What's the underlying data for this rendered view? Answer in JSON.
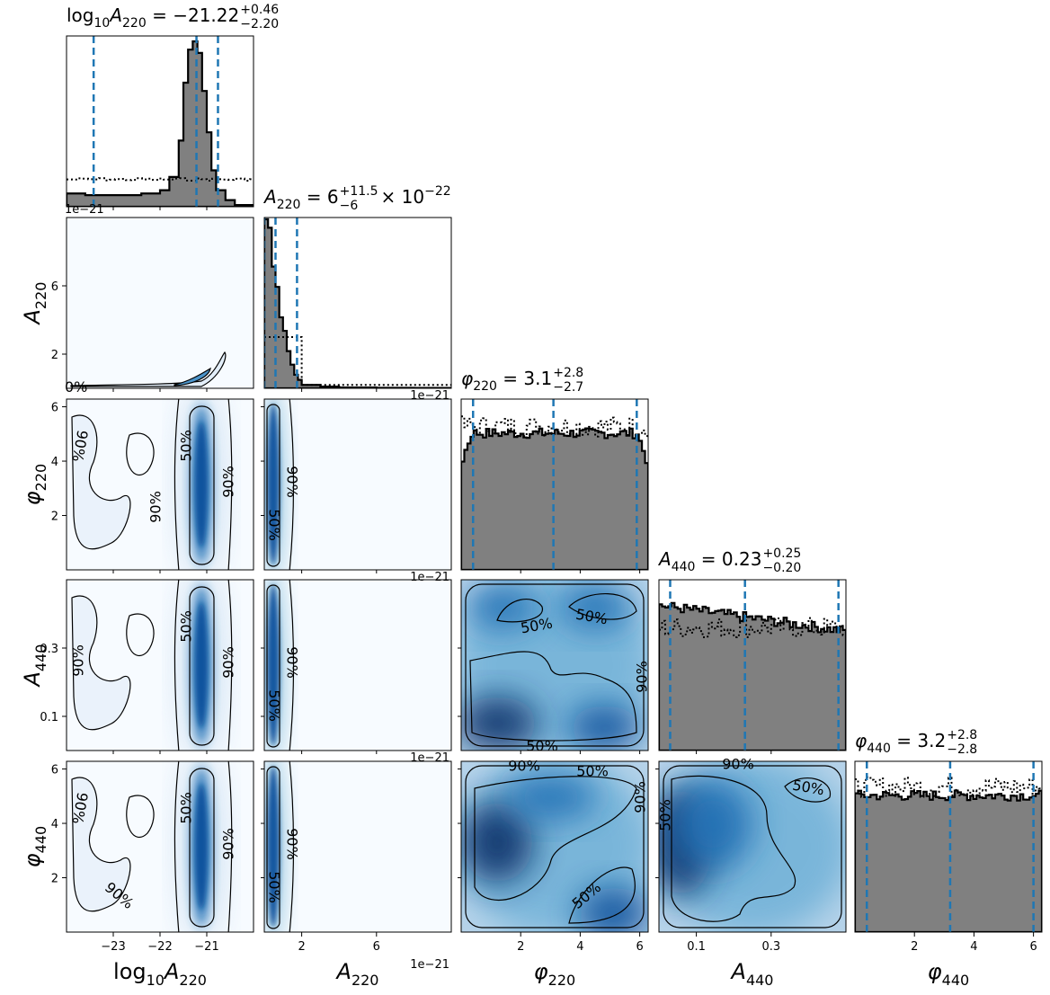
{
  "chart_data": {
    "type": "corner",
    "parameters": [
      {
        "symbol": "log",
        "sub": "10",
        "name": "A",
        "name_sub": "220",
        "axis_label": "log10A220",
        "title": {
          "lhs_base": "log",
          "lhs_base_sub": "10",
          "lhs_var": "A",
          "lhs_var_sub": "220",
          "value": "−21.22",
          "plus": "+0.46",
          "minus": "−2.20",
          "suffix": ""
        },
        "range": [
          -24.0,
          -20.0
        ],
        "ticks": [
          -23,
          -22,
          -21
        ],
        "tick_labels": [
          "−23",
          "−22",
          "−21"
        ],
        "quantiles": [
          -23.42,
          -21.22,
          -20.76
        ],
        "offset_text": ""
      },
      {
        "name": "A",
        "name_sub": "220",
        "axis_label": "A220",
        "title": {
          "lhs_var": "A",
          "lhs_var_sub": "220",
          "value": "6",
          "plus": "+11.5",
          "minus": "−6",
          "suffix": " × 10",
          "suffix_sup": "−22"
        },
        "range": [
          0.0,
          1e-20
        ],
        "ticks": [
          2e-21,
          6e-21
        ],
        "tick_labels": [
          "2",
          "6"
        ],
        "quantiles": [
          0.0,
          6e-22,
          1.75e-21
        ],
        "offset_text": "1e−21"
      },
      {
        "name": "φ",
        "name_sub": "220",
        "axis_label": "phi220",
        "title": {
          "lhs_var": "φ",
          "lhs_var_sub": "220",
          "value": "3.1",
          "plus": "+2.8",
          "minus": "−2.7",
          "suffix": ""
        },
        "range": [
          0.0,
          6.2832
        ],
        "ticks": [
          2,
          4,
          6
        ],
        "tick_labels": [
          "2",
          "4",
          "6"
        ],
        "quantiles": [
          0.4,
          3.1,
          5.9
        ],
        "offset_text": ""
      },
      {
        "name": "A",
        "name_sub": "440",
        "axis_label": "A440",
        "title": {
          "lhs_var": "A",
          "lhs_var_sub": "440",
          "value": "0.23",
          "plus": "+0.25",
          "minus": "−0.20",
          "suffix": ""
        },
        "range": [
          0.0,
          0.5
        ],
        "ticks": [
          0.1,
          0.3
        ],
        "tick_labels": [
          "0.1",
          "0.3"
        ],
        "quantiles": [
          0.03,
          0.23,
          0.48
        ],
        "offset_text": ""
      },
      {
        "name": "φ",
        "name_sub": "440",
        "axis_label": "phi440",
        "title": {
          "lhs_var": "φ",
          "lhs_var_sub": "440",
          "value": "3.2",
          "plus": "+2.8",
          "minus": "−2.8",
          "suffix": ""
        },
        "range": [
          0.0,
          6.2832
        ],
        "ticks": [
          2,
          4,
          6
        ],
        "tick_labels": [
          "2",
          "4",
          "6"
        ],
        "quantiles": [
          0.4,
          3.2,
          6.0
        ],
        "offset_text": ""
      }
    ],
    "contour_levels": [
      "50%",
      "90%"
    ],
    "histogram_fill": "#808080",
    "histogram_edge": "#000000",
    "quantile_line_color": "#1f77b4",
    "density_colormap": [
      "#f7fbff",
      "#c6dbef",
      "#6baed6",
      "#2171b5",
      "#08306b"
    ],
    "prior_line_style": "dotted",
    "edge_labels": {
      "row_A220_partial_contour_label": "0%",
      "offset_labels": [
        "1e−21",
        "1e−21",
        "1e−21",
        "1e−21"
      ]
    },
    "marginals": {
      "log10A220": {
        "bins_x": [
          -24.0,
          -23.6,
          -23.2,
          -22.8,
          -22.4,
          -22.0,
          -21.8,
          -21.6,
          -21.5,
          -21.4,
          -21.3,
          -21.2,
          -21.1,
          -21.0,
          -20.9,
          -20.8,
          -20.6,
          -20.4,
          -20.0
        ],
        "heights": [
          0.08,
          0.07,
          0.07,
          0.07,
          0.08,
          0.1,
          0.18,
          0.4,
          0.75,
          0.95,
          1.0,
          0.93,
          0.7,
          0.45,
          0.22,
          0.1,
          0.04,
          0.01
        ],
        "prior_level": 0.16
      },
      "A220": {
        "bins_x": [
          0.0,
          0.2,
          0.4,
          0.6,
          0.8,
          1.0,
          1.2,
          1.4,
          1.6,
          1.8,
          2.0,
          3.0,
          4.0,
          6.0,
          8.0,
          10.0
        ],
        "heights": [
          1.0,
          0.95,
          0.72,
          0.6,
          0.42,
          0.34,
          0.22,
          0.14,
          0.08,
          0.05,
          0.02,
          0.01,
          0.005,
          0.003,
          0.002
        ],
        "prior_heights": [
          0.3,
          0.3,
          0.3,
          0.3,
          0.3,
          0.3,
          0.3,
          0.3,
          0.3,
          0.3,
          0.02,
          0.02,
          0.02,
          0.02,
          0.02
        ]
      },
      "phi220": {
        "level": 0.8,
        "prior_level": 0.84
      },
      "A440": {
        "start": 0.85,
        "end": 0.7,
        "prior_level": 0.72
      },
      "phi440": {
        "level": 0.8,
        "prior_level": 0.85
      }
    }
  }
}
